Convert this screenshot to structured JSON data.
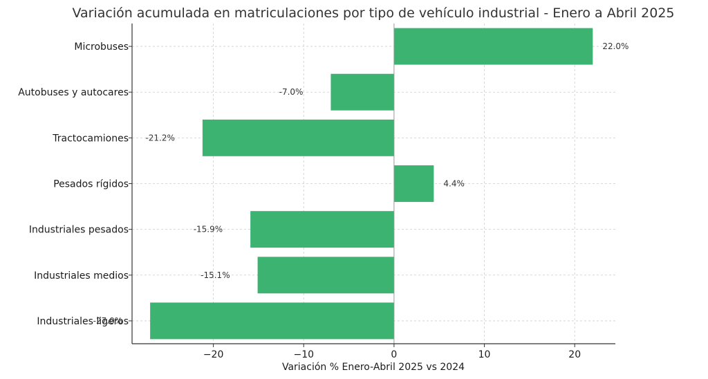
{
  "chart_data": {
    "type": "bar",
    "orientation": "horizontal",
    "title": "Variación acumulada en matriculaciones por tipo de vehículo industrial - Enero a Abril 2025",
    "xlabel": "Variación % Enero-Abril 2025 vs 2024",
    "ylabel": "",
    "xlim": [
      -29,
      24.5
    ],
    "xticks": [
      -20,
      -10,
      0,
      10,
      20
    ],
    "xtick_labels": [
      "−20",
      "−10",
      "0",
      "10",
      "20"
    ],
    "grid": true,
    "bar_color": "#3cb371",
    "categories": [
      "Microbuses",
      "Autobuses y autocares",
      "Tractocamiones",
      "Pesados rígidos",
      "Industriales pesados",
      "Industriales medios",
      "Industriales ligeros"
    ],
    "values": [
      22.0,
      -7.0,
      -21.2,
      4.4,
      -15.9,
      -15.1,
      -27.0
    ],
    "data_labels": [
      "22.0%",
      "-7.0%",
      "-21.2%",
      "4.4%",
      "-15.9%",
      "-15.1%",
      "-27.0%"
    ]
  }
}
